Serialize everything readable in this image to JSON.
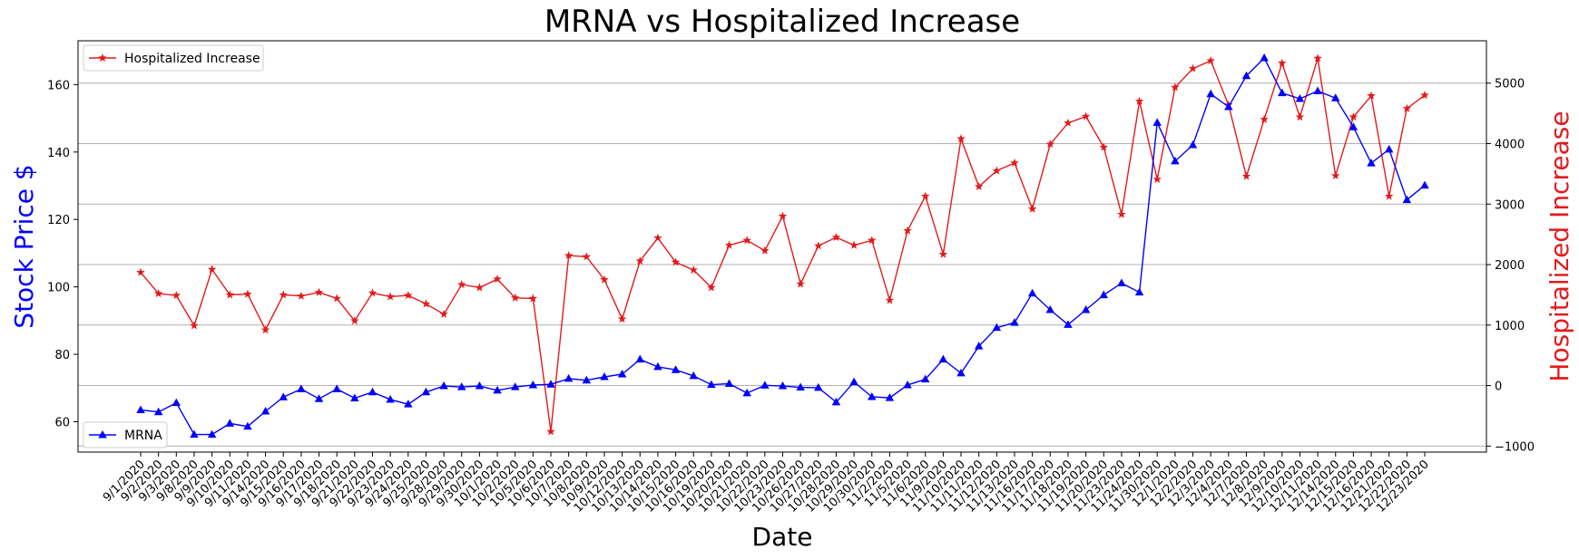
{
  "chart_data": {
    "type": "line",
    "title": "MRNA vs Hospitalized Increase",
    "xlabel": "Date",
    "ylabel_left": "Stock Price $",
    "ylabel_right": "Hospitalized Increase",
    "ylim_left": [
      51,
      173
    ],
    "ylim_right": [
      -1100,
      5700
    ],
    "yticks_left": [
      "60",
      "80",
      "100",
      "120",
      "140",
      "160"
    ],
    "yticks_right": [
      "−1000",
      "0",
      "1000",
      "2000",
      "3000",
      "4000",
      "5000"
    ],
    "grid": "horizontal, right axis",
    "colors": {
      "mrna": "#0000ff",
      "hosp": "#e31a1c",
      "left_label": "#0000ff",
      "right_label": "#e31a1c"
    },
    "x": [
      "9/1/2020",
      "9/2/2020",
      "9/3/2020",
      "9/8/2020",
      "9/9/2020",
      "9/10/2020",
      "9/11/2020",
      "9/14/2020",
      "9/15/2020",
      "9/16/2020",
      "9/17/2020",
      "9/18/2020",
      "9/21/2020",
      "9/22/2020",
      "9/23/2020",
      "9/24/2020",
      "9/25/2020",
      "9/28/2020",
      "9/29/2020",
      "9/30/2020",
      "10/1/2020",
      "10/2/2020",
      "10/5/2020",
      "10/6/2020",
      "10/7/2020",
      "10/8/2020",
      "10/9/2020",
      "10/12/2020",
      "10/13/2020",
      "10/14/2020",
      "10/15/2020",
      "10/16/2020",
      "10/19/2020",
      "10/20/2020",
      "10/21/2020",
      "10/22/2020",
      "10/23/2020",
      "10/26/2020",
      "10/27/2020",
      "10/28/2020",
      "10/29/2020",
      "10/30/2020",
      "11/2/2020",
      "11/5/2020",
      "11/6/2020",
      "11/9/2020",
      "11/10/2020",
      "11/11/2020",
      "11/12/2020",
      "11/13/2020",
      "11/16/2020",
      "11/17/2020",
      "11/18/2020",
      "11/19/2020",
      "11/20/2020",
      "11/23/2020",
      "11/24/2020",
      "11/30/2020",
      "12/1/2020",
      "12/2/2020",
      "12/3/2020",
      "12/4/2020",
      "12/7/2020",
      "12/8/2020",
      "12/9/2020",
      "12/10/2020",
      "12/11/2020",
      "12/14/2020",
      "12/15/2020",
      "12/16/2020",
      "12/21/2020",
      "12/22/2020",
      "12/23/2020"
    ],
    "series": [
      {
        "name": "MRNA",
        "axis": "left",
        "marker": "triangle",
        "values": [
          63.5,
          62.9,
          65.6,
          56.2,
          56.2,
          59.5,
          58.6,
          63.1,
          67.3,
          69.7,
          66.8,
          69.7,
          67.0,
          68.8,
          66.6,
          65.2,
          68.8,
          70.6,
          70.3,
          70.6,
          69.3,
          70.3,
          70.9,
          71.1,
          72.8,
          72.3,
          73.3,
          74.1,
          78.5,
          76.3,
          75.4,
          73.6,
          71.0,
          71.3,
          68.5,
          70.8,
          70.6,
          70.2,
          70.1,
          65.8,
          71.8,
          67.4,
          67.1,
          70.9,
          72.6,
          78.5,
          74.4,
          82.4,
          87.9,
          89.4,
          98.1,
          93.2,
          88.8,
          93.2,
          97.6,
          101.1,
          98.4,
          148.7,
          137.3,
          142.1,
          157.2,
          153.4,
          162.6,
          167.9,
          157.5,
          155.8,
          158.1,
          156.0,
          147.4,
          136.7,
          140.8,
          125.8,
          130.1
        ]
      },
      {
        "name": "Hospitalized Increase",
        "axis": "right",
        "marker": "star",
        "values": [
          1870,
          1520,
          1490,
          990,
          1920,
          1500,
          1510,
          920,
          1500,
          1480,
          1540,
          1440,
          1070,
          1530,
          1470,
          1490,
          1350,
          1180,
          1670,
          1620,
          1760,
          1450,
          1440,
          -760,
          2150,
          2130,
          1750,
          1100,
          2060,
          2440,
          2040,
          1910,
          1620,
          2320,
          2400,
          2230,
          2800,
          1680,
          2310,
          2450,
          2320,
          2400,
          1410,
          2560,
          3130,
          2170,
          4080,
          3290,
          3550,
          3680,
          2920,
          3990,
          4340,
          4450,
          3940,
          2830,
          4700,
          3410,
          4930,
          5240,
          5370,
          4640,
          3460,
          4400,
          5330,
          4440,
          5410,
          3470,
          4440,
          4790,
          3130,
          4580,
          4800
        ]
      }
    ],
    "legend": [
      {
        "series": "Hospitalized Increase",
        "placement": "top-left"
      },
      {
        "series": "MRNA",
        "placement": "bottom-left"
      }
    ]
  }
}
